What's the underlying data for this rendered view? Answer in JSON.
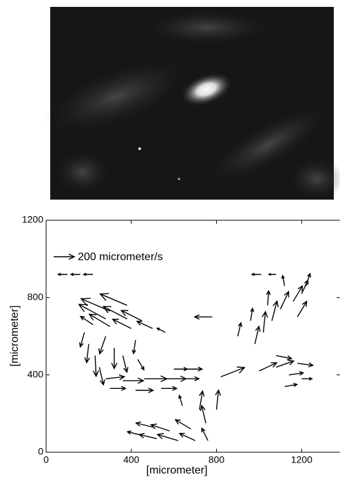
{
  "chart_data": {
    "type": "quiver",
    "xlabel": "[micrometer]",
    "ylabel": "[micrometer]",
    "xlim": [
      0,
      1380
    ],
    "ylim": [
      0,
      1200
    ],
    "xticks": [
      0,
      400,
      800,
      1200
    ],
    "yticks": [
      0,
      400,
      800,
      1200
    ],
    "color": "#000000",
    "reference": {
      "value": 200,
      "label": "200 micrometer/s"
    },
    "x": [
      100,
      160,
      220,
      1010,
      1080,
      780,
      380,
      300,
      280,
      380,
      450,
      220,
      300,
      400,
      500,
      560,
      180,
      200,
      230,
      250,
      280,
      320,
      360,
      420,
      430,
      280,
      360,
      460,
      560,
      640,
      600,
      660,
      300,
      420,
      540,
      820,
      900,
      980,
      1020,
      1060,
      1100,
      1160,
      1200,
      1220,
      1120,
      1040,
      960,
      1180,
      1080,
      1000,
      1080,
      1140,
      1180,
      1120,
      1200,
      640,
      720,
      800,
      750,
      680,
      580,
      500,
      620,
      520,
      440,
      760,
      700
    ],
    "y": [
      920,
      920,
      920,
      920,
      920,
      700,
      760,
      730,
      690,
      690,
      680,
      660,
      650,
      640,
      640,
      620,
      620,
      560,
      500,
      440,
      600,
      540,
      500,
      580,
      480,
      380,
      370,
      380,
      380,
      380,
      430,
      430,
      330,
      320,
      330,
      390,
      600,
      560,
      620,
      680,
      740,
      780,
      820,
      860,
      860,
      760,
      680,
      700,
      500,
      420,
      440,
      400,
      460,
      340,
      380,
      240,
      220,
      220,
      150,
      120,
      110,
      130,
      60,
      70,
      90,
      60,
      60
    ],
    "u": [
      -90,
      -90,
      -90,
      -90,
      -70,
      -170,
      -260,
      -280,
      -260,
      -230,
      -200,
      -120,
      -200,
      -180,
      -150,
      -80,
      -40,
      -20,
      10,
      40,
      -60,
      0,
      40,
      -20,
      60,
      180,
      200,
      220,
      200,
      160,
      130,
      150,
      150,
      170,
      150,
      230,
      30,
      40,
      20,
      50,
      80,
      90,
      60,
      40,
      -20,
      10,
      20,
      90,
      150,
      170,
      170,
      140,
      150,
      120,
      100,
      -30,
      30,
      20,
      -40,
      -150,
      -180,
      -160,
      -200,
      -170,
      -120,
      -60,
      -150
    ],
    "v": [
      0,
      0,
      0,
      0,
      0,
      0,
      110,
      120,
      140,
      120,
      100,
      80,
      120,
      90,
      70,
      40,
      -140,
      -180,
      -200,
      -170,
      -170,
      -200,
      -160,
      -130,
      -100,
      20,
      0,
      0,
      0,
      0,
      0,
      0,
      0,
      0,
      0,
      90,
      130,
      170,
      200,
      190,
      170,
      150,
      130,
      120,
      100,
      140,
      120,
      150,
      -30,
      80,
      60,
      20,
      -20,
      20,
      0,
      100,
      180,
      190,
      170,
      90,
      60,
      40,
      60,
      40,
      30,
      120,
      70
    ]
  }
}
